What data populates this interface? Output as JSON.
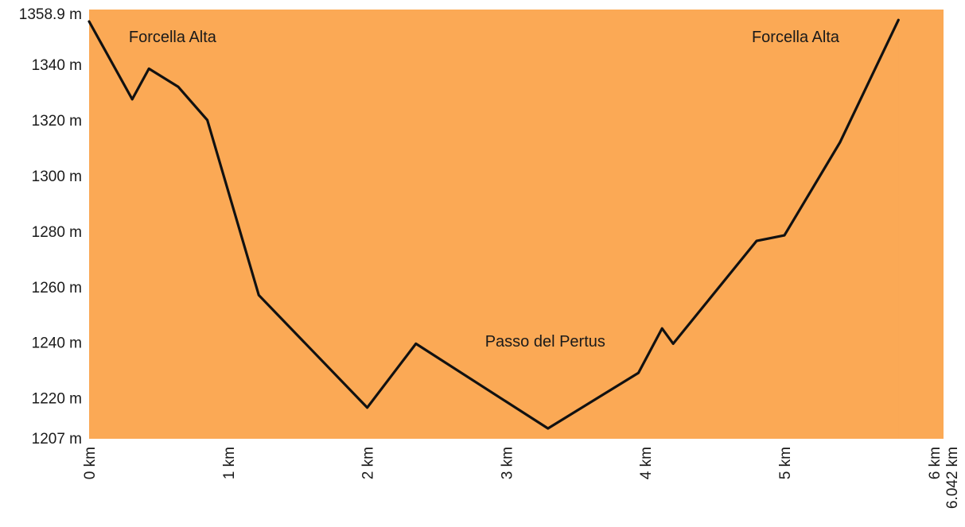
{
  "chart_data": {
    "type": "area",
    "colors": {
      "fill": "#FBA955",
      "line": "#111111"
    },
    "grid": false,
    "legend": "none",
    "xlim": [
      0,
      6.042
    ],
    "ylim": [
      1207,
      1358.9
    ],
    "y_ticks": [
      {
        "value": 1358.9,
        "label": "1358.9 m"
      },
      {
        "value": 1340,
        "label": "1340 m"
      },
      {
        "value": 1320,
        "label": "1320 m"
      },
      {
        "value": 1300,
        "label": "1300 m"
      },
      {
        "value": 1280,
        "label": "1280 m"
      },
      {
        "value": 1260,
        "label": "1260 m"
      },
      {
        "value": 1240,
        "label": "1240 m"
      },
      {
        "value": 1220,
        "label": "1220 m"
      },
      {
        "value": 1207,
        "label": "1207 m"
      }
    ],
    "x_ticks": [
      {
        "value": 0,
        "label": "0 km"
      },
      {
        "value": 1,
        "label": "1 km"
      },
      {
        "value": 2,
        "label": "2 km"
      },
      {
        "value": 3,
        "label": "3 km"
      },
      {
        "value": 4,
        "label": "4 km"
      },
      {
        "value": 5,
        "label": "5 km"
      },
      {
        "value": 6,
        "label": "6 km"
      },
      {
        "value": 6.042,
        "label": "6.042 km"
      }
    ],
    "series": [
      {
        "x": [
          0,
          0.31,
          0.43,
          0.64,
          0.85,
          1.22,
          2.0,
          2.35,
          3.3,
          3.95,
          4.12,
          4.2,
          4.8,
          5.0,
          5.4,
          5.82
        ],
        "values": [
          1355.5,
          1327.5,
          1338.5,
          1332,
          1320,
          1257,
          1216.5,
          1239.5,
          1209,
          1229,
          1245,
          1239.5,
          1276.5,
          1278.5,
          1312,
          1356
        ]
      }
    ],
    "annotations": [
      {
        "text": "Forcella Alta",
        "x": 0.6,
        "y": 1348
      },
      {
        "text": "Forcella Alta",
        "x": 5.08,
        "y": 1348
      },
      {
        "text": "Passo del Pertus",
        "x": 3.28,
        "y": 1238.5
      }
    ]
  }
}
